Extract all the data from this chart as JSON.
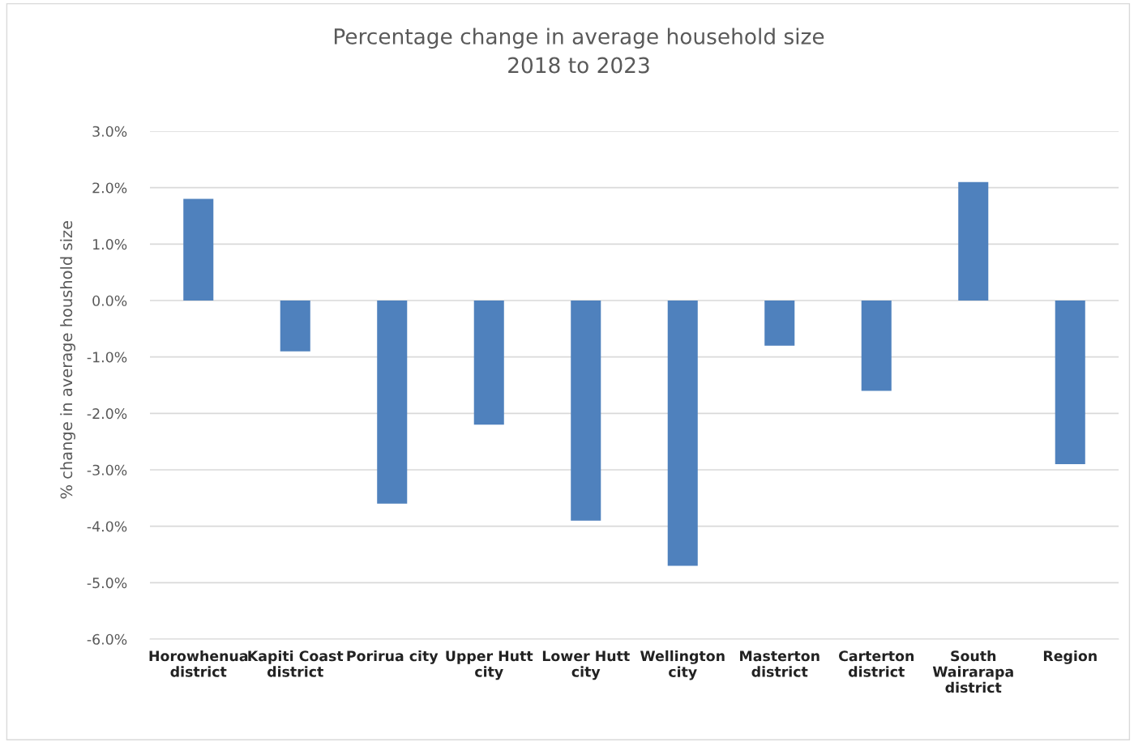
{
  "chart_data": {
    "type": "bar",
    "title": "Percentage change in average household size\n2018 to 2023",
    "ylabel": "% change in average houshold size",
    "categories": [
      "Horowhenua\ndistrict",
      "Kapiti Coast\ndistrict",
      "Porirua city",
      "Upper Hutt\ncity",
      "Lower Hutt\ncity",
      "Wellington\ncity",
      "Masterton\ndistrict",
      "Carterton\ndistrict",
      "South\nWairarapa\ndistrict",
      "Region"
    ],
    "values": [
      1.8,
      -0.9,
      -3.6,
      -2.2,
      -3.9,
      -4.7,
      -0.8,
      -1.6,
      2.1,
      -2.9
    ],
    "color": "#4f81bd",
    "ylim": [
      -6,
      3
    ],
    "yticks": [
      {
        "value": -6,
        "label": "-6.0%"
      },
      {
        "value": -5,
        "label": "-5.0%"
      },
      {
        "value": -4,
        "label": "-4.0%"
      },
      {
        "value": -3,
        "label": "-3.0%"
      },
      {
        "value": -2,
        "label": "-2.0%"
      },
      {
        "value": -1,
        "label": "-1.0%"
      },
      {
        "value": 0,
        "label": "0.0%"
      },
      {
        "value": 1,
        "label": "1.0%"
      },
      {
        "value": 2,
        "label": "2.0%"
      },
      {
        "value": 3,
        "label": "3.0%"
      }
    ],
    "grid": "y",
    "legend": false
  }
}
